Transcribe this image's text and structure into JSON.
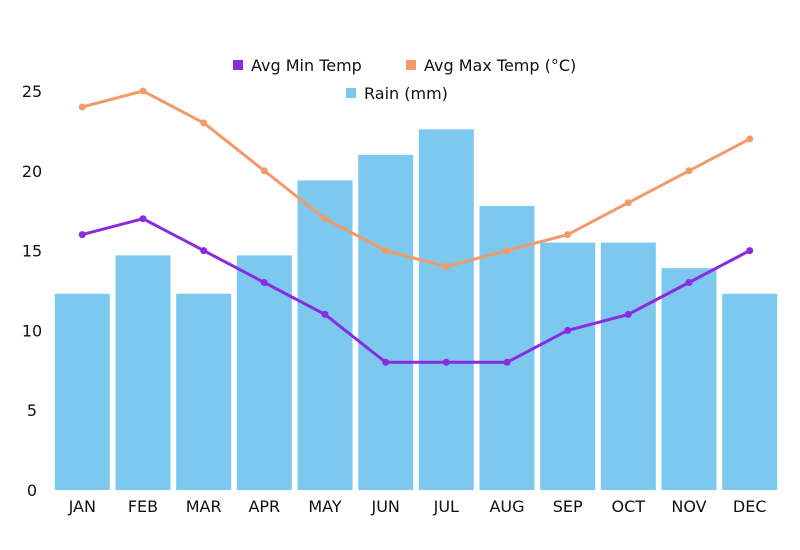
{
  "chart_data": {
    "type": "bar",
    "categories": [
      "JAN",
      "FEB",
      "MAR",
      "APR",
      "MAY",
      "JUN",
      "JUL",
      "AUG",
      "SEP",
      "OCT",
      "NOV",
      "DEC"
    ],
    "series": [
      {
        "name": "Rain (mm)",
        "type": "bar",
        "color": "#7cc8ef",
        "values": [
          12.3,
          14.7,
          12.3,
          14.7,
          19.4,
          21.0,
          22.6,
          17.8,
          15.5,
          15.5,
          13.9,
          12.3
        ]
      },
      {
        "name": "Avg Min Temp",
        "type": "line",
        "color": "#8a2be2",
        "values": [
          16,
          17,
          15,
          13,
          11,
          8,
          8,
          8,
          10,
          11,
          13,
          15
        ]
      },
      {
        "name": "Avg Max Temp (°C)",
        "type": "line",
        "color": "#f39a6a",
        "values": [
          24,
          25,
          23,
          20,
          17,
          15,
          14,
          15,
          16,
          18,
          20,
          22
        ]
      }
    ],
    "title": "",
    "xlabel": "",
    "ylabel": "",
    "ylim": [
      0,
      25
    ],
    "yticks": [
      "0",
      "5",
      "10",
      "15",
      "20",
      "25"
    ],
    "grid": false,
    "legend": "top-center"
  }
}
